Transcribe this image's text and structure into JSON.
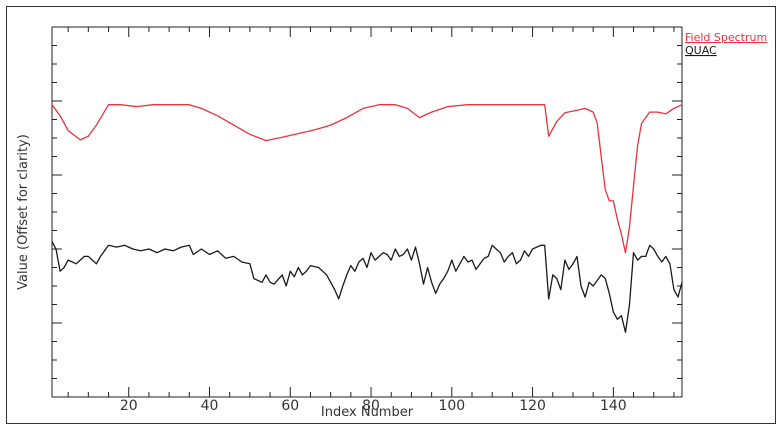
{
  "chart_data": {
    "type": "line",
    "title": "",
    "xlabel": "Index Number",
    "ylabel": "Value (Offset for clarity)",
    "xlim": [
      1,
      157
    ],
    "ylim": [
      0,
      100
    ],
    "x_ticks": [
      20,
      40,
      60,
      80,
      100,
      120,
      140
    ],
    "grid": false,
    "legend_position": "right",
    "series": [
      {
        "name": "Field Spectrum",
        "color": "#e8323c",
        "points": [
          [
            1,
            79
          ],
          [
            3,
            76
          ],
          [
            5,
            72
          ],
          [
            8,
            69.5
          ],
          [
            10,
            70.5
          ],
          [
            12,
            73.5
          ],
          [
            15,
            79
          ],
          [
            18,
            79
          ],
          [
            22,
            78.5
          ],
          [
            26,
            79
          ],
          [
            30,
            79
          ],
          [
            35,
            79
          ],
          [
            38,
            78
          ],
          [
            42,
            76
          ],
          [
            46,
            73.5
          ],
          [
            50,
            71
          ],
          [
            54,
            69.3
          ],
          [
            58,
            70.2
          ],
          [
            62,
            71.2
          ],
          [
            66,
            72.2
          ],
          [
            70,
            73.5
          ],
          [
            74,
            75.5
          ],
          [
            78,
            78
          ],
          [
            82,
            79
          ],
          [
            86,
            79
          ],
          [
            89,
            78
          ],
          [
            92,
            75.5
          ],
          [
            95,
            77
          ],
          [
            99,
            78.5
          ],
          [
            104,
            79
          ],
          [
            110,
            79
          ],
          [
            116,
            79
          ],
          [
            120,
            79
          ],
          [
            123,
            79
          ],
          [
            124,
            70.5
          ],
          [
            126,
            74.5
          ],
          [
            128,
            76.8
          ],
          [
            131,
            77.5
          ],
          [
            133,
            78
          ],
          [
            135,
            77
          ],
          [
            136,
            74
          ],
          [
            137,
            65
          ],
          [
            138,
            56
          ],
          [
            139,
            53
          ],
          [
            140,
            53
          ],
          [
            141,
            48
          ],
          [
            142,
            44
          ],
          [
            143,
            39
          ],
          [
            144,
            46
          ],
          [
            145,
            57
          ],
          [
            146,
            68
          ],
          [
            147,
            74
          ],
          [
            149,
            77
          ],
          [
            151,
            77
          ],
          [
            153,
            76.5
          ],
          [
            155,
            78
          ],
          [
            157,
            79
          ]
        ]
      },
      {
        "name": "QUAC",
        "color": "#1a1a1a",
        "points": [
          [
            1,
            42
          ],
          [
            2,
            40
          ],
          [
            3,
            34
          ],
          [
            4,
            35
          ],
          [
            5,
            37
          ],
          [
            7,
            36
          ],
          [
            9,
            38
          ],
          [
            10,
            38
          ],
          [
            12,
            36
          ],
          [
            13,
            38
          ],
          [
            15,
            41
          ],
          [
            17,
            40.5
          ],
          [
            19,
            41
          ],
          [
            21,
            40
          ],
          [
            23,
            39.5
          ],
          [
            25,
            40
          ],
          [
            27,
            39
          ],
          [
            29,
            40
          ],
          [
            31,
            39.5
          ],
          [
            33,
            40.5
          ],
          [
            35,
            41
          ],
          [
            36,
            38.5
          ],
          [
            38,
            40
          ],
          [
            40,
            38.5
          ],
          [
            42,
            39.5
          ],
          [
            44,
            37.5
          ],
          [
            46,
            38
          ],
          [
            48,
            36.5
          ],
          [
            50,
            36
          ],
          [
            51,
            32
          ],
          [
            53,
            31
          ],
          [
            54,
            33
          ],
          [
            55,
            31
          ],
          [
            56,
            30.5
          ],
          [
            58,
            33
          ],
          [
            59,
            30
          ],
          [
            60,
            34
          ],
          [
            61,
            32.5
          ],
          [
            62,
            35
          ],
          [
            63,
            33
          ],
          [
            64,
            34
          ],
          [
            65,
            35.5
          ],
          [
            67,
            35
          ],
          [
            68,
            34
          ],
          [
            69,
            33
          ],
          [
            70,
            31
          ],
          [
            71,
            29
          ],
          [
            72,
            26.5
          ],
          [
            73,
            30
          ],
          [
            74,
            33
          ],
          [
            75,
            35.5
          ],
          [
            76,
            34
          ],
          [
            77,
            36.5
          ],
          [
            78,
            37.5
          ],
          [
            79,
            35
          ],
          [
            80,
            39
          ],
          [
            81,
            37
          ],
          [
            82,
            38
          ],
          [
            83,
            39
          ],
          [
            84,
            38.5
          ],
          [
            85,
            37
          ],
          [
            86,
            40
          ],
          [
            87,
            38
          ],
          [
            88,
            38.5
          ],
          [
            89,
            40
          ],
          [
            90,
            37
          ],
          [
            91,
            40.5
          ],
          [
            92,
            36
          ],
          [
            93,
            30.5
          ],
          [
            94,
            35
          ],
          [
            95,
            31
          ],
          [
            96,
            28
          ],
          [
            97,
            30.5
          ],
          [
            98,
            32
          ],
          [
            99,
            34
          ],
          [
            100,
            37
          ],
          [
            101,
            34
          ],
          [
            102,
            36
          ],
          [
            103,
            38
          ],
          [
            104,
            36.5
          ],
          [
            105,
            37
          ],
          [
            106,
            34.5
          ],
          [
            107,
            36
          ],
          [
            108,
            37.5
          ],
          [
            109,
            38
          ],
          [
            110,
            41
          ],
          [
            111,
            40
          ],
          [
            112,
            39
          ],
          [
            113,
            36.5
          ],
          [
            114,
            38
          ],
          [
            115,
            39
          ],
          [
            116,
            36
          ],
          [
            117,
            37
          ],
          [
            118,
            39.5
          ],
          [
            119,
            38
          ],
          [
            120,
            40
          ],
          [
            122,
            41
          ],
          [
            123,
            41
          ],
          [
            124,
            26.5
          ],
          [
            125,
            33
          ],
          [
            126,
            32
          ],
          [
            127,
            29
          ],
          [
            128,
            37
          ],
          [
            129,
            34.5
          ],
          [
            130,
            36
          ],
          [
            131,
            38
          ],
          [
            132,
            30
          ],
          [
            133,
            27
          ],
          [
            134,
            31
          ],
          [
            135,
            30
          ],
          [
            137,
            33
          ],
          [
            138,
            32
          ],
          [
            139,
            28
          ],
          [
            140,
            23
          ],
          [
            141,
            21
          ],
          [
            142,
            22
          ],
          [
            143,
            17.5
          ],
          [
            144,
            25
          ],
          [
            145,
            39
          ],
          [
            146,
            37
          ],
          [
            147,
            38
          ],
          [
            148,
            38
          ],
          [
            149,
            41
          ],
          [
            150,
            40
          ],
          [
            151,
            38
          ],
          [
            152,
            36.5
          ],
          [
            153,
            38
          ],
          [
            154,
            36
          ],
          [
            155,
            29
          ],
          [
            156,
            27
          ],
          [
            157,
            31
          ]
        ]
      }
    ]
  }
}
